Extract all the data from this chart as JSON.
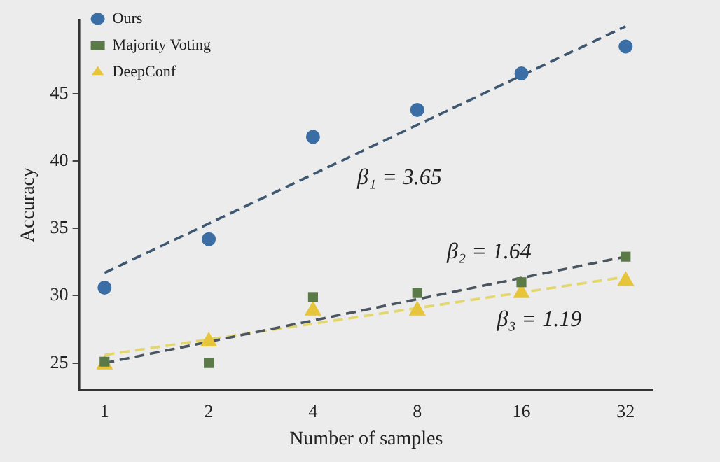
{
  "chart_data": {
    "type": "scatter",
    "xlabel": "Number of samples",
    "ylabel": "Accuracy",
    "categories": [
      "1",
      "2",
      "4",
      "8",
      "16",
      "32"
    ],
    "ylim": [
      23,
      50.5
    ],
    "yticks": [
      25,
      30,
      35,
      40,
      45
    ],
    "grid": false,
    "legend": "top left",
    "series": [
      {
        "name": "Ours",
        "color": "#3b6ea5",
        "marker": "circle",
        "values": [
          30.6,
          34.2,
          41.8,
          43.8,
          46.5,
          48.5
        ]
      },
      {
        "name": "Majority Voting",
        "color": "#5a7a48",
        "marker": "square",
        "values": [
          25.1,
          25.0,
          29.9,
          30.2,
          31.0,
          32.9
        ]
      },
      {
        "name": "DeepConf",
        "color": "#e6c53a",
        "marker": "triangle",
        "values": [
          24.9,
          26.6,
          28.9,
          28.9,
          30.2,
          31.1
        ]
      },
      {
        "type": "line",
        "color": "#3f5872",
        "line_style": "dashed",
        "marker": "none",
        "values": [
          31.7,
          null,
          null,
          null,
          null,
          50.0
        ]
      },
      {
        "type": "line",
        "color": "#4a5560",
        "line_style": "dashed",
        "marker": "none",
        "values": [
          25.0,
          null,
          null,
          null,
          null,
          32.9
        ]
      },
      {
        "type": "line",
        "color": "#e3d66a",
        "line_style": "dashed",
        "marker": "none",
        "values": [
          25.6,
          null,
          null,
          null,
          null,
          31.4
        ]
      }
    ],
    "annotations": [
      "β₁ = 3.65",
      "β₂ = 1.64",
      "β₃ = 1.19"
    ]
  }
}
